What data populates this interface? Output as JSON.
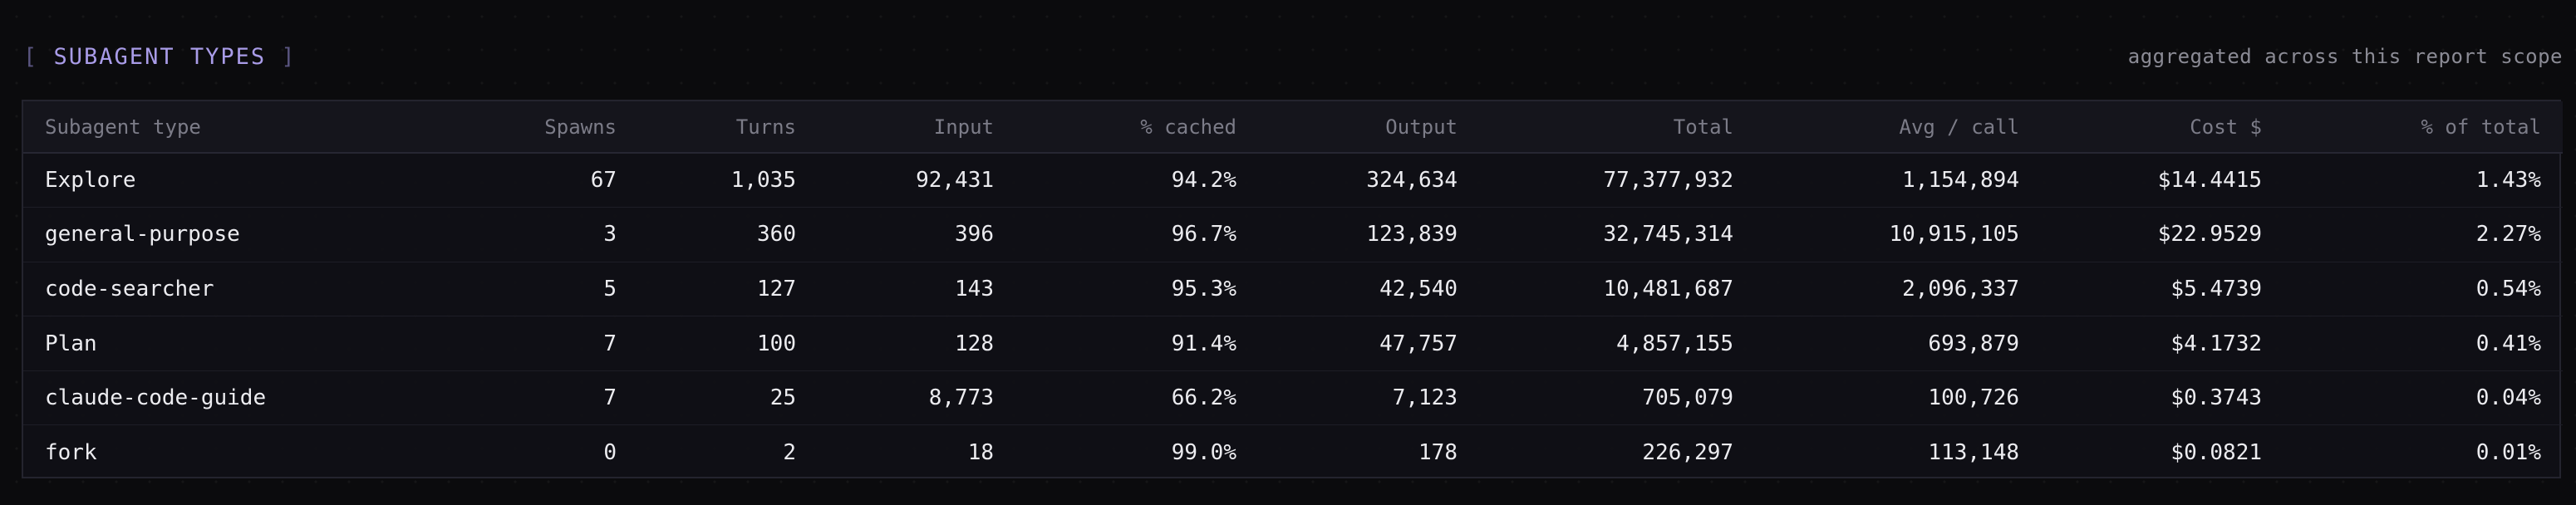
{
  "header": {
    "bracket_open": "[",
    "title": "SUBAGENT TYPES",
    "bracket_close": "]",
    "note": "aggregated across this report scope"
  },
  "table": {
    "columns": [
      "Subagent type",
      "Spawns",
      "Turns",
      "Input",
      "% cached",
      "Output",
      "Total",
      "Avg / call",
      "Cost $",
      "% of total"
    ],
    "rows": [
      [
        "Explore",
        "67",
        "1,035",
        "92,431",
        "94.2%",
        "324,634",
        "77,377,932",
        "1,154,894",
        "$14.4415",
        "1.43%"
      ],
      [
        "general-purpose",
        "3",
        "360",
        "396",
        "96.7%",
        "123,839",
        "32,745,314",
        "10,915,105",
        "$22.9529",
        "2.27%"
      ],
      [
        "code-searcher",
        "5",
        "127",
        "143",
        "95.3%",
        "42,540",
        "10,481,687",
        "2,096,337",
        "$5.4739",
        "0.54%"
      ],
      [
        "Plan",
        "7",
        "100",
        "128",
        "91.4%",
        "47,757",
        "4,857,155",
        "693,879",
        "$4.1732",
        "0.41%"
      ],
      [
        "claude-code-guide",
        "7",
        "25",
        "8,773",
        "66.2%",
        "7,123",
        "705,079",
        "100,726",
        "$0.3743",
        "0.04%"
      ],
      [
        "fork",
        "0",
        "2",
        "18",
        "99.0%",
        "178",
        "226,297",
        "113,148",
        "$0.0821",
        "0.01%"
      ]
    ]
  },
  "colors": {
    "background": "#0b0b0d",
    "accent": "#a99ce8",
    "muted_text": "#8b8b95",
    "table_border": "#24242e"
  }
}
